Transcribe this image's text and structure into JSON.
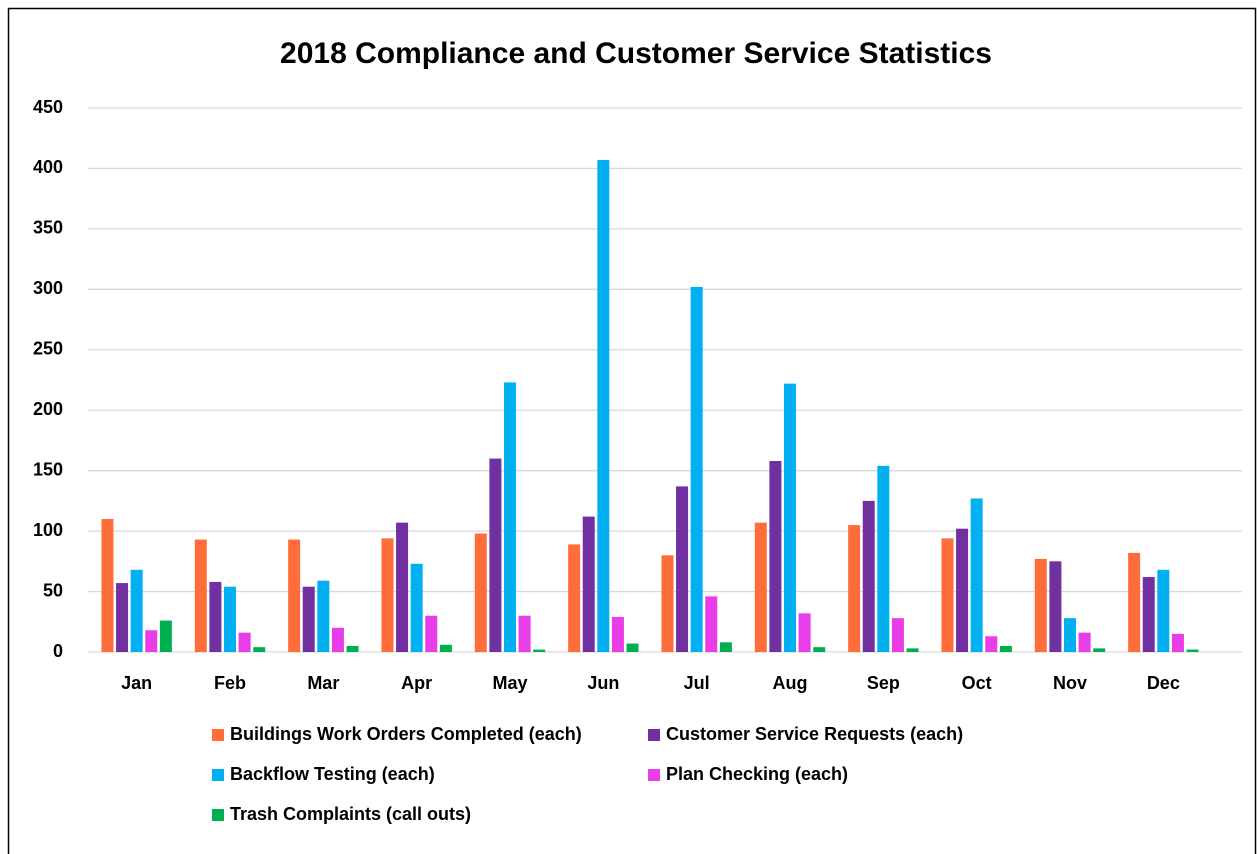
{
  "chart_data": {
    "type": "bar",
    "title": "2018 Compliance and Customer Service Statistics",
    "categories": [
      "Jan",
      "Feb",
      "Mar",
      "Apr",
      "May",
      "Jun",
      "Jul",
      "Aug",
      "Sep",
      "Oct",
      "Nov",
      "Dec"
    ],
    "series": [
      {
        "name": "Buildings Work Orders Completed (each)",
        "color": "#ff6d3b",
        "values": [
          110,
          93,
          93,
          94,
          98,
          89,
          80,
          107,
          105,
          94,
          77,
          82
        ]
      },
      {
        "name": "Customer Service Requests (each)",
        "color": "#7030a0",
        "values": [
          57,
          58,
          54,
          107,
          160,
          112,
          137,
          158,
          125,
          102,
          75,
          62
        ]
      },
      {
        "name": "Backflow Testing (each)",
        "color": "#00b0f0",
        "values": [
          68,
          54,
          59,
          73,
          223,
          407,
          302,
          222,
          154,
          127,
          28,
          68
        ]
      },
      {
        "name": "Plan Checking (each)",
        "color": "#e83de8",
        "values": [
          18,
          16,
          20,
          30,
          30,
          29,
          46,
          32,
          28,
          13,
          16,
          15
        ]
      },
      {
        "name": "Trash Complaints (call outs)",
        "color": "#00b050",
        "values": [
          26,
          4,
          5,
          6,
          2,
          7,
          8,
          4,
          3,
          5,
          3,
          2
        ]
      }
    ],
    "ylim": [
      0,
      450
    ],
    "yticks": [
      0,
      50,
      100,
      150,
      200,
      250,
      300,
      350,
      400,
      450
    ],
    "grid": true,
    "legend": "bottom"
  }
}
